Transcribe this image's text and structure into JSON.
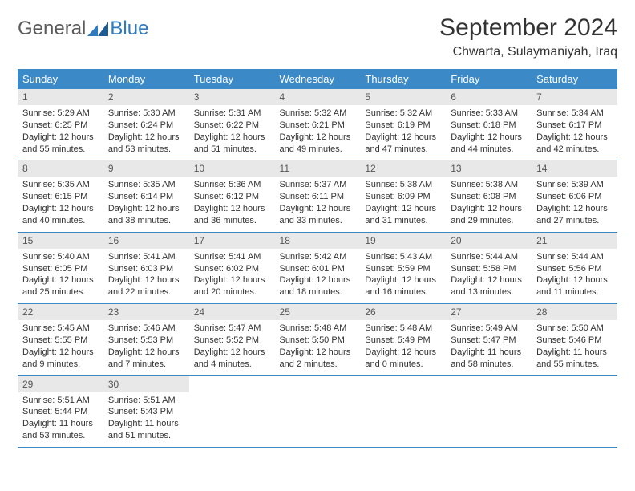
{
  "brand": {
    "general": "General",
    "blue": "Blue"
  },
  "title": "September 2024",
  "location": "Chwarta, Sulaymaniyah, Iraq",
  "colors": {
    "header_bg": "#3b89c7",
    "header_text": "#ffffff",
    "daynum_bg": "#e8e8e8",
    "border": "#3b89c7",
    "body_text": "#333333",
    "logo_gray": "#5b5b5b",
    "logo_blue": "#2f7bbf"
  },
  "weekdays": [
    "Sunday",
    "Monday",
    "Tuesday",
    "Wednesday",
    "Thursday",
    "Friday",
    "Saturday"
  ],
  "days": [
    {
      "n": "1",
      "sr": "Sunrise: 5:29 AM",
      "ss": "Sunset: 6:25 PM",
      "dl": "Daylight: 12 hours and 55 minutes."
    },
    {
      "n": "2",
      "sr": "Sunrise: 5:30 AM",
      "ss": "Sunset: 6:24 PM",
      "dl": "Daylight: 12 hours and 53 minutes."
    },
    {
      "n": "3",
      "sr": "Sunrise: 5:31 AM",
      "ss": "Sunset: 6:22 PM",
      "dl": "Daylight: 12 hours and 51 minutes."
    },
    {
      "n": "4",
      "sr": "Sunrise: 5:32 AM",
      "ss": "Sunset: 6:21 PM",
      "dl": "Daylight: 12 hours and 49 minutes."
    },
    {
      "n": "5",
      "sr": "Sunrise: 5:32 AM",
      "ss": "Sunset: 6:19 PM",
      "dl": "Daylight: 12 hours and 47 minutes."
    },
    {
      "n": "6",
      "sr": "Sunrise: 5:33 AM",
      "ss": "Sunset: 6:18 PM",
      "dl": "Daylight: 12 hours and 44 minutes."
    },
    {
      "n": "7",
      "sr": "Sunrise: 5:34 AM",
      "ss": "Sunset: 6:17 PM",
      "dl": "Daylight: 12 hours and 42 minutes."
    },
    {
      "n": "8",
      "sr": "Sunrise: 5:35 AM",
      "ss": "Sunset: 6:15 PM",
      "dl": "Daylight: 12 hours and 40 minutes."
    },
    {
      "n": "9",
      "sr": "Sunrise: 5:35 AM",
      "ss": "Sunset: 6:14 PM",
      "dl": "Daylight: 12 hours and 38 minutes."
    },
    {
      "n": "10",
      "sr": "Sunrise: 5:36 AM",
      "ss": "Sunset: 6:12 PM",
      "dl": "Daylight: 12 hours and 36 minutes."
    },
    {
      "n": "11",
      "sr": "Sunrise: 5:37 AM",
      "ss": "Sunset: 6:11 PM",
      "dl": "Daylight: 12 hours and 33 minutes."
    },
    {
      "n": "12",
      "sr": "Sunrise: 5:38 AM",
      "ss": "Sunset: 6:09 PM",
      "dl": "Daylight: 12 hours and 31 minutes."
    },
    {
      "n": "13",
      "sr": "Sunrise: 5:38 AM",
      "ss": "Sunset: 6:08 PM",
      "dl": "Daylight: 12 hours and 29 minutes."
    },
    {
      "n": "14",
      "sr": "Sunrise: 5:39 AM",
      "ss": "Sunset: 6:06 PM",
      "dl": "Daylight: 12 hours and 27 minutes."
    },
    {
      "n": "15",
      "sr": "Sunrise: 5:40 AM",
      "ss": "Sunset: 6:05 PM",
      "dl": "Daylight: 12 hours and 25 minutes."
    },
    {
      "n": "16",
      "sr": "Sunrise: 5:41 AM",
      "ss": "Sunset: 6:03 PM",
      "dl": "Daylight: 12 hours and 22 minutes."
    },
    {
      "n": "17",
      "sr": "Sunrise: 5:41 AM",
      "ss": "Sunset: 6:02 PM",
      "dl": "Daylight: 12 hours and 20 minutes."
    },
    {
      "n": "18",
      "sr": "Sunrise: 5:42 AM",
      "ss": "Sunset: 6:01 PM",
      "dl": "Daylight: 12 hours and 18 minutes."
    },
    {
      "n": "19",
      "sr": "Sunrise: 5:43 AM",
      "ss": "Sunset: 5:59 PM",
      "dl": "Daylight: 12 hours and 16 minutes."
    },
    {
      "n": "20",
      "sr": "Sunrise: 5:44 AM",
      "ss": "Sunset: 5:58 PM",
      "dl": "Daylight: 12 hours and 13 minutes."
    },
    {
      "n": "21",
      "sr": "Sunrise: 5:44 AM",
      "ss": "Sunset: 5:56 PM",
      "dl": "Daylight: 12 hours and 11 minutes."
    },
    {
      "n": "22",
      "sr": "Sunrise: 5:45 AM",
      "ss": "Sunset: 5:55 PM",
      "dl": "Daylight: 12 hours and 9 minutes."
    },
    {
      "n": "23",
      "sr": "Sunrise: 5:46 AM",
      "ss": "Sunset: 5:53 PM",
      "dl": "Daylight: 12 hours and 7 minutes."
    },
    {
      "n": "24",
      "sr": "Sunrise: 5:47 AM",
      "ss": "Sunset: 5:52 PM",
      "dl": "Daylight: 12 hours and 4 minutes."
    },
    {
      "n": "25",
      "sr": "Sunrise: 5:48 AM",
      "ss": "Sunset: 5:50 PM",
      "dl": "Daylight: 12 hours and 2 minutes."
    },
    {
      "n": "26",
      "sr": "Sunrise: 5:48 AM",
      "ss": "Sunset: 5:49 PM",
      "dl": "Daylight: 12 hours and 0 minutes."
    },
    {
      "n": "27",
      "sr": "Sunrise: 5:49 AM",
      "ss": "Sunset: 5:47 PM",
      "dl": "Daylight: 11 hours and 58 minutes."
    },
    {
      "n": "28",
      "sr": "Sunrise: 5:50 AM",
      "ss": "Sunset: 5:46 PM",
      "dl": "Daylight: 11 hours and 55 minutes."
    },
    {
      "n": "29",
      "sr": "Sunrise: 5:51 AM",
      "ss": "Sunset: 5:44 PM",
      "dl": "Daylight: 11 hours and 53 minutes."
    },
    {
      "n": "30",
      "sr": "Sunrise: 5:51 AM",
      "ss": "Sunset: 5:43 PM",
      "dl": "Daylight: 11 hours and 51 minutes."
    }
  ]
}
